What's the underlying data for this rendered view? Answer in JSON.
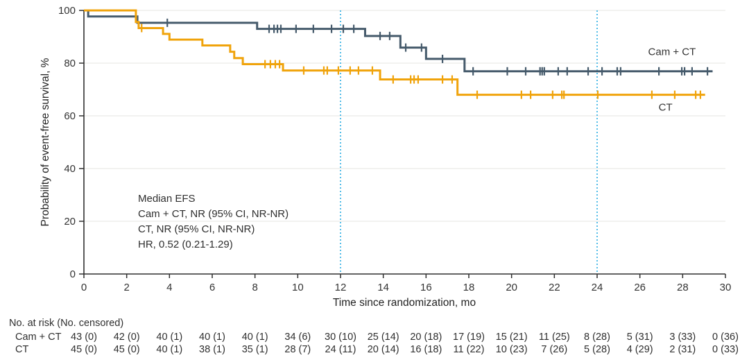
{
  "chart_data": {
    "type": "line",
    "subtype": "kaplan-meier-step",
    "xlabel": "Time since randomization, mo",
    "ylabel": "Probability of event-free survival, %",
    "xlim": [
      0,
      30
    ],
    "ylim": [
      0,
      100
    ],
    "xticks": [
      0,
      2,
      4,
      6,
      8,
      10,
      12,
      14,
      16,
      18,
      20,
      22,
      24,
      26,
      28,
      30
    ],
    "yticks": [
      0,
      20,
      40,
      60,
      80,
      100
    ],
    "grid_yticks": [
      20,
      40,
      60,
      80,
      100
    ],
    "grid_on": true,
    "reference_lines_x": [
      12,
      24
    ],
    "colors": {
      "cam_ct": "#455A6B",
      "ct": "#F0A30B",
      "reference_line": "#41B6E6",
      "grid": "#E9E9E7",
      "axis": "#2F2F2F",
      "text": "#333333"
    },
    "annotation": {
      "lines": [
        "Median EFS",
        "Cam + CT, NR (95% CI, NR-NR)",
        "CT, NR (95% CI, NR-NR)",
        "HR, 0.52 (0.21-1.29)"
      ]
    },
    "series": [
      {
        "name": "Cam + CT",
        "color": "#455A6B",
        "steps": [
          [
            0,
            100
          ],
          [
            0.2,
            97.7
          ],
          [
            2.5,
            95.3
          ],
          [
            8.1,
            93.0
          ],
          [
            13.15,
            90.3
          ],
          [
            14.8,
            85.9
          ],
          [
            16.0,
            81.6
          ],
          [
            17.8,
            76.9
          ]
        ],
        "end_t": 29.4,
        "censor_t": [
          3.9,
          8.66,
          8.89,
          9.05,
          9.21,
          9.92,
          10.73,
          11.58,
          12.13,
          12.62,
          13.85,
          14.3,
          15.05,
          15.79,
          16.77,
          18.2,
          19.8,
          20.66,
          21.33,
          21.43,
          21.53,
          22.18,
          22.6,
          23.58,
          24.23,
          24.94,
          25.1,
          26.89,
          27.96,
          28.09,
          28.44,
          29.16
        ]
      },
      {
        "name": "CT",
        "color": "#F0A30B",
        "steps": [
          [
            0,
            100
          ],
          [
            2.43,
            95.6
          ],
          [
            2.56,
            93.3
          ],
          [
            3.7,
            91.1
          ],
          [
            4.0,
            88.9
          ],
          [
            5.54,
            86.7
          ],
          [
            6.84,
            84.3
          ],
          [
            7.03,
            81.9
          ],
          [
            7.43,
            79.6
          ],
          [
            9.31,
            77.2
          ],
          [
            13.85,
            73.8
          ],
          [
            17.47,
            68.0
          ]
        ],
        "end_t": 29.05,
        "censor_t": [
          2.7,
          8.47,
          8.72,
          8.95,
          9.15,
          10.28,
          11.22,
          11.38,
          11.9,
          12.45,
          12.84,
          13.49,
          14.46,
          15.28,
          15.44,
          15.63,
          16.77,
          17.22,
          18.39,
          20.46,
          20.89,
          21.92,
          22.35,
          22.45,
          24.03,
          26.56,
          27.63,
          28.61,
          28.83
        ]
      }
    ],
    "curve_labels": [
      {
        "text": "Cam + CT",
        "x_t": 27.5,
        "pct": 83.0
      },
      {
        "text": "CT",
        "x_t": 27.2,
        "pct": 62.0
      }
    ],
    "risk_table": {
      "header": "No. at risk (No. censored)",
      "times": [
        0,
        2,
        4,
        6,
        8,
        10,
        12,
        14,
        16,
        18,
        20,
        22,
        24,
        26,
        28,
        30
      ],
      "rows": [
        {
          "label": "Cam + CT",
          "values": [
            "43 (0)",
            "42 (0)",
            "40 (1)",
            "40 (1)",
            "40 (1)",
            "34 (6)",
            "30 (10)",
            "25 (14)",
            "20 (18)",
            "17 (19)",
            "15 (21)",
            "11 (25)",
            "8 (28)",
            "5 (31)",
            "3 (33)",
            "0 (36)"
          ]
        },
        {
          "label": "CT",
          "values": [
            "45 (0)",
            "45 (0)",
            "40 (1)",
            "38 (1)",
            "35 (1)",
            "28 (7)",
            "24 (11)",
            "20 (14)",
            "16 (18)",
            "11 (22)",
            "10 (23)",
            "7 (26)",
            "5 (28)",
            "4 (29)",
            "2 (31)",
            "0 (33)"
          ]
        }
      ]
    }
  }
}
